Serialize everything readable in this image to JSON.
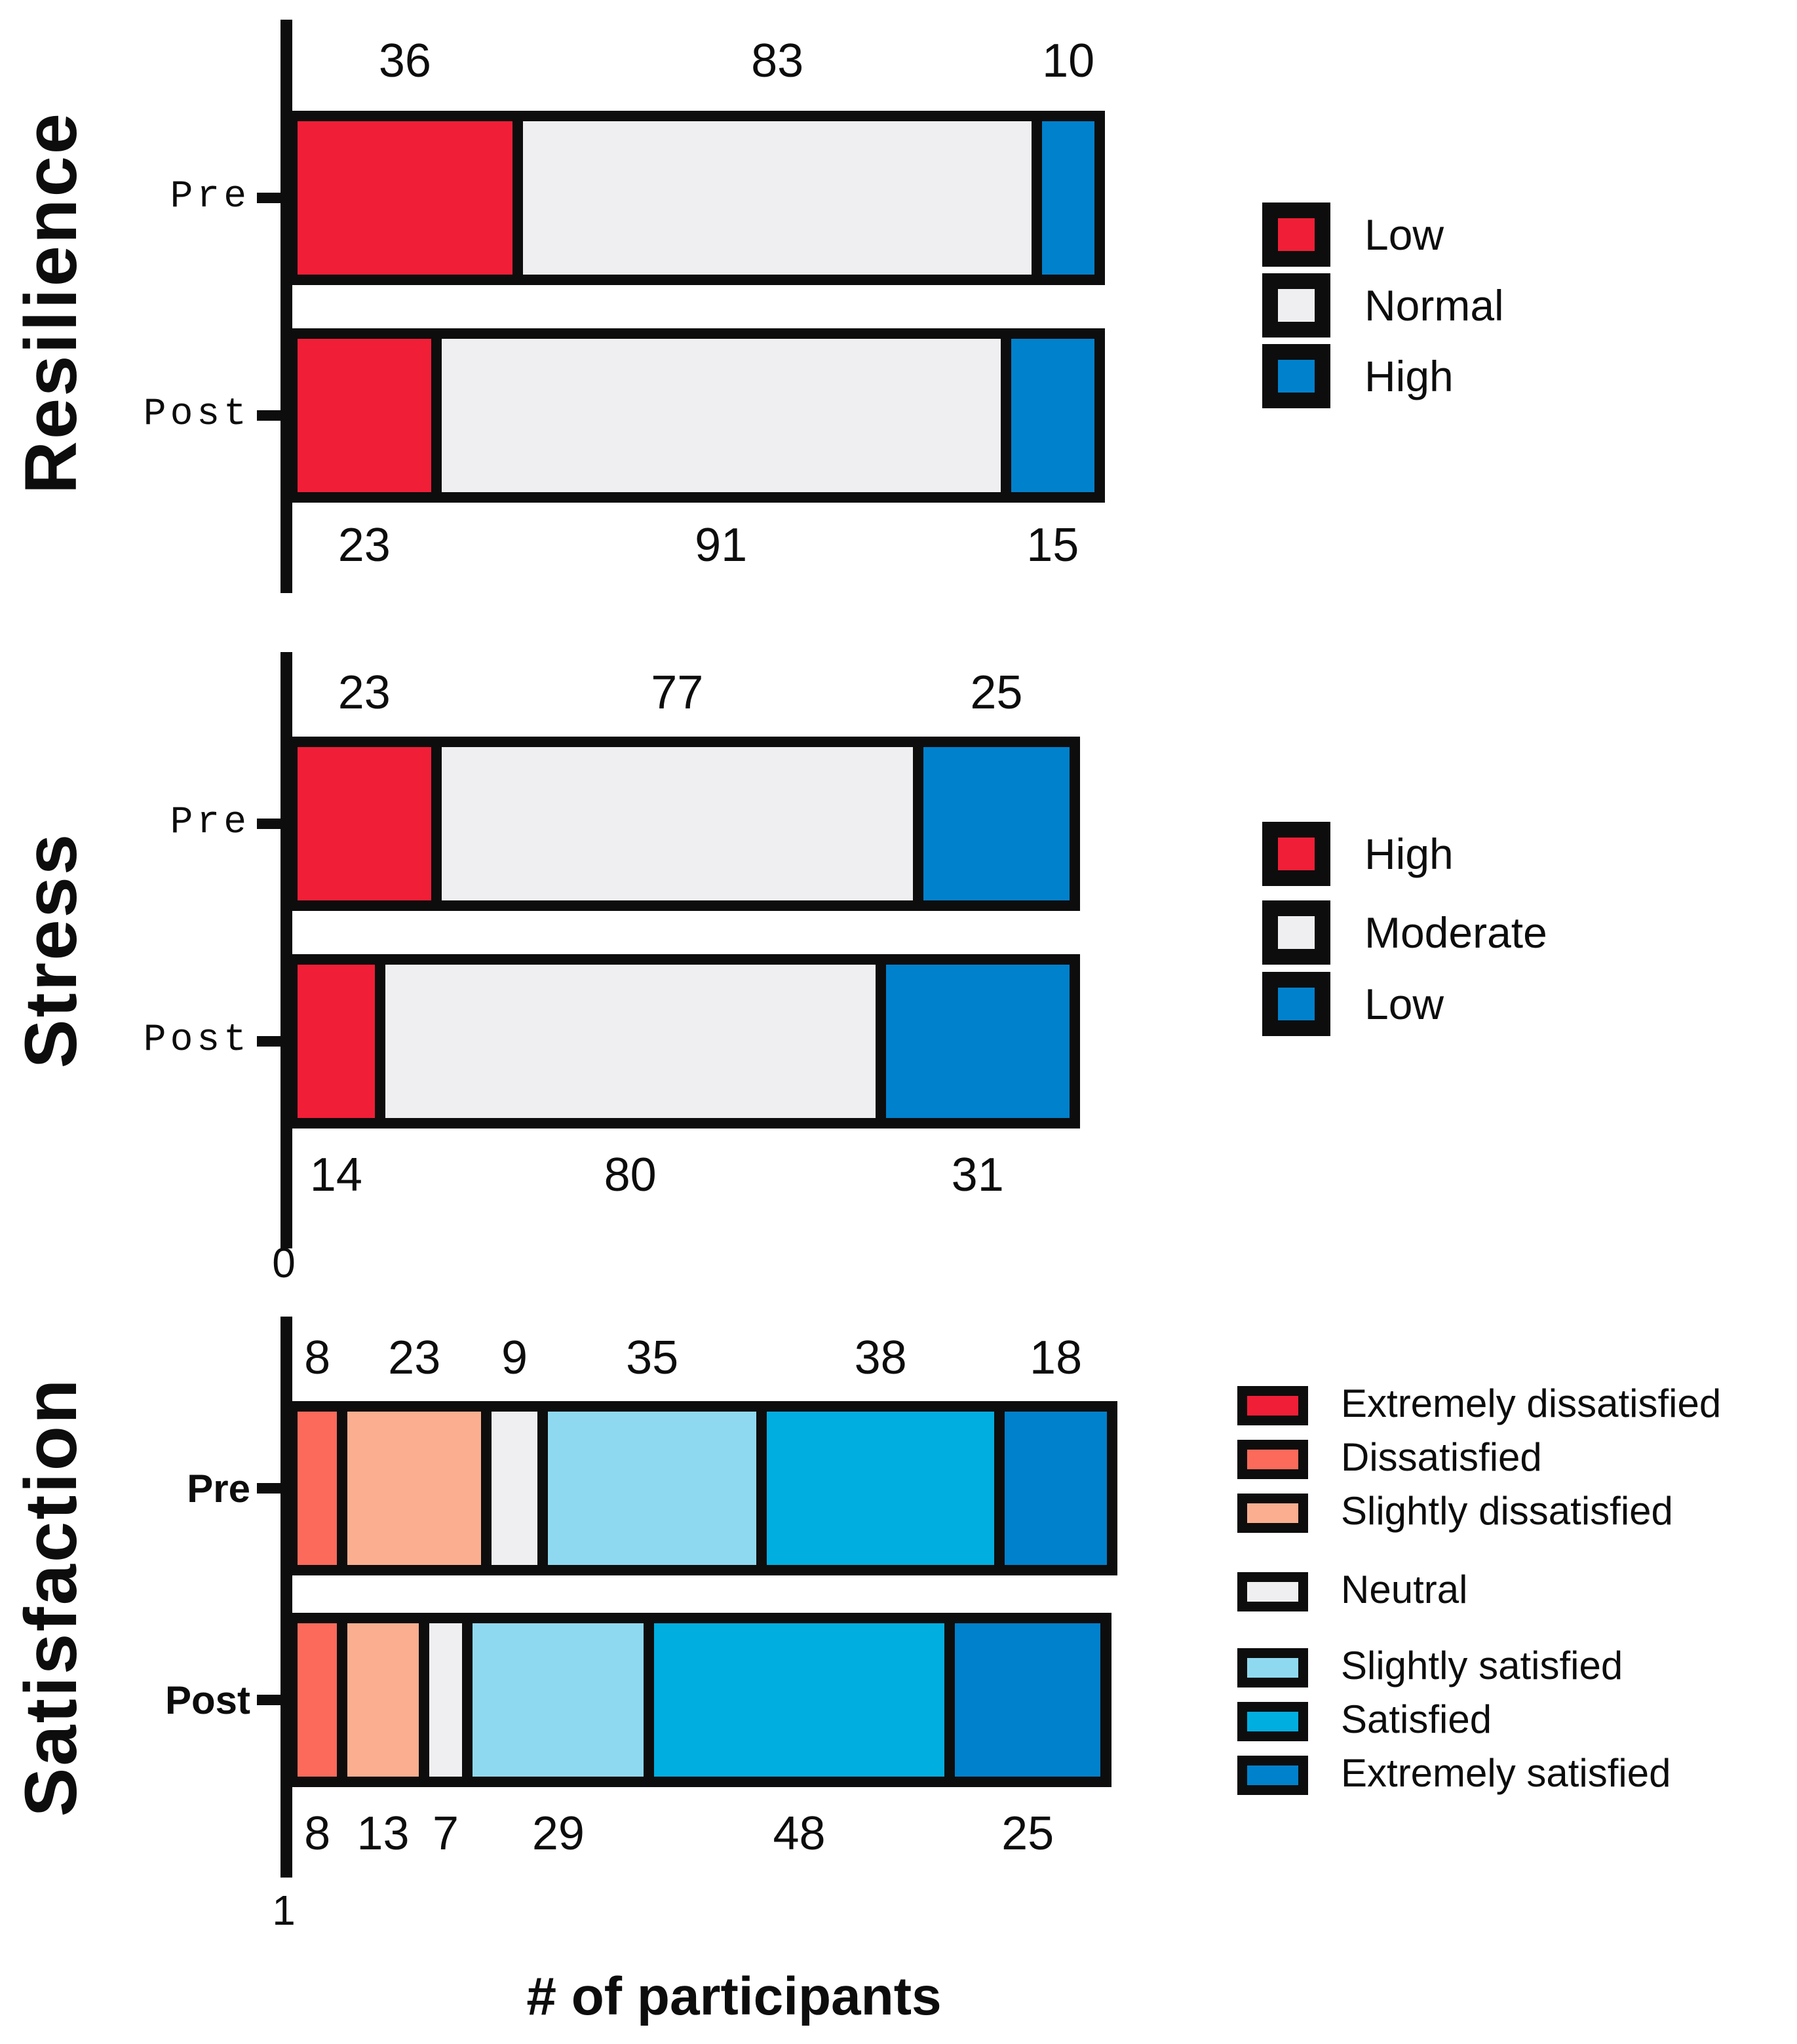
{
  "figure": {
    "xlabel": "# of participants",
    "background": "#ffffff",
    "line_color": "#0d0d0d"
  },
  "chart_data": [
    {
      "type": "bar",
      "stacked": true,
      "orientation": "horizontal",
      "title": "Resilience",
      "categories": [
        "Pre",
        "Post"
      ],
      "legend": [
        {
          "label": "Low",
          "color": "#F01E37"
        },
        {
          "label": "Normal",
          "color": "#EFEFF1"
        },
        {
          "label": "High",
          "color": "#0081CC"
        }
      ],
      "series": [
        {
          "category": "Pre",
          "values": [
            36,
            83,
            10
          ],
          "label_position": "above"
        },
        {
          "category": "Post",
          "values": [
            23,
            91,
            15
          ],
          "label_position": "below"
        }
      ],
      "axis_origin_label": ""
    },
    {
      "type": "bar",
      "stacked": true,
      "orientation": "horizontal",
      "title": "Stress",
      "categories": [
        "Pre",
        "Post"
      ],
      "legend": [
        {
          "label": "High",
          "color": "#F01E37"
        },
        {
          "label": "Moderate",
          "color": "#EFEFF1"
        },
        {
          "label": "Low",
          "color": "#0081CC"
        }
      ],
      "series": [
        {
          "category": "Pre",
          "values": [
            23,
            77,
            25
          ],
          "label_position": "above"
        },
        {
          "category": "Post",
          "values": [
            14,
            80,
            31
          ],
          "label_position": "below"
        }
      ],
      "axis_origin_label": "0"
    },
    {
      "type": "bar",
      "stacked": true,
      "orientation": "horizontal",
      "title": "Satisfaction",
      "categories": [
        "Pre",
        "Post"
      ],
      "legend": [
        {
          "label": "Extremely dissatisfied",
          "color": "#F01E37",
          "group": 0
        },
        {
          "label": "Dissatisfied",
          "color": "#FB6A5A",
          "group": 0
        },
        {
          "label": "Slightly dissatisfied",
          "color": "#FBAE90",
          "group": 0
        },
        {
          "label": "Neutral",
          "color": "#EFEFF1",
          "group": 1
        },
        {
          "label": "Slightly satisfied",
          "color": "#8FD9F0",
          "group": 2
        },
        {
          "label": "Satisfied",
          "color": "#00AEE0",
          "group": 2
        },
        {
          "label": "Extremely satisfied",
          "color": "#0081CC",
          "group": 2
        }
      ],
      "series": [
        {
          "category": "Pre",
          "values": [
            0,
            8,
            23,
            9,
            35,
            38,
            18
          ],
          "label_position": "above"
        },
        {
          "category": "Post",
          "values": [
            0,
            8,
            13,
            7,
            29,
            48,
            25
          ],
          "label_position": "below"
        }
      ],
      "axis_origin_label": "1"
    }
  ]
}
